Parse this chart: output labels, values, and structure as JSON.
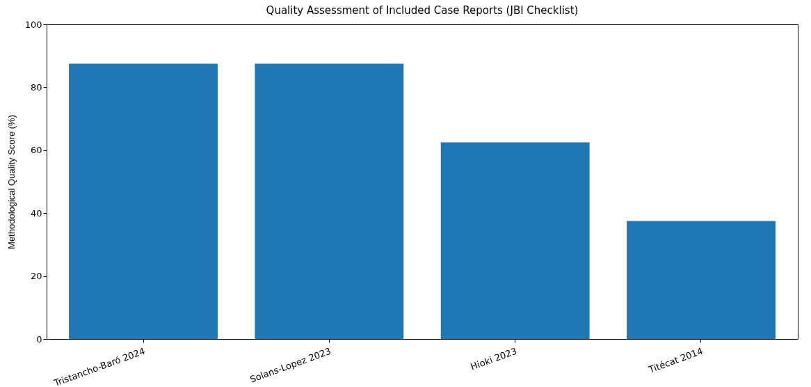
{
  "chart_data": {
    "type": "bar",
    "title": "Quality Assessment of Included Case Reports (JBI Checklist)",
    "ylabel": "Methodological Quality Score (%)",
    "categories": [
      "Tristancho-Baró 2024",
      "Solans-Lopez 2023",
      "Hioki 2023",
      "Titécat 2014"
    ],
    "values": [
      87.5,
      87.5,
      62.5,
      37.5
    ],
    "color": "#1f77b4",
    "ylim": [
      0,
      100
    ],
    "yticks": [
      0,
      20,
      40,
      60,
      80,
      100
    ],
    "grid": false
  }
}
